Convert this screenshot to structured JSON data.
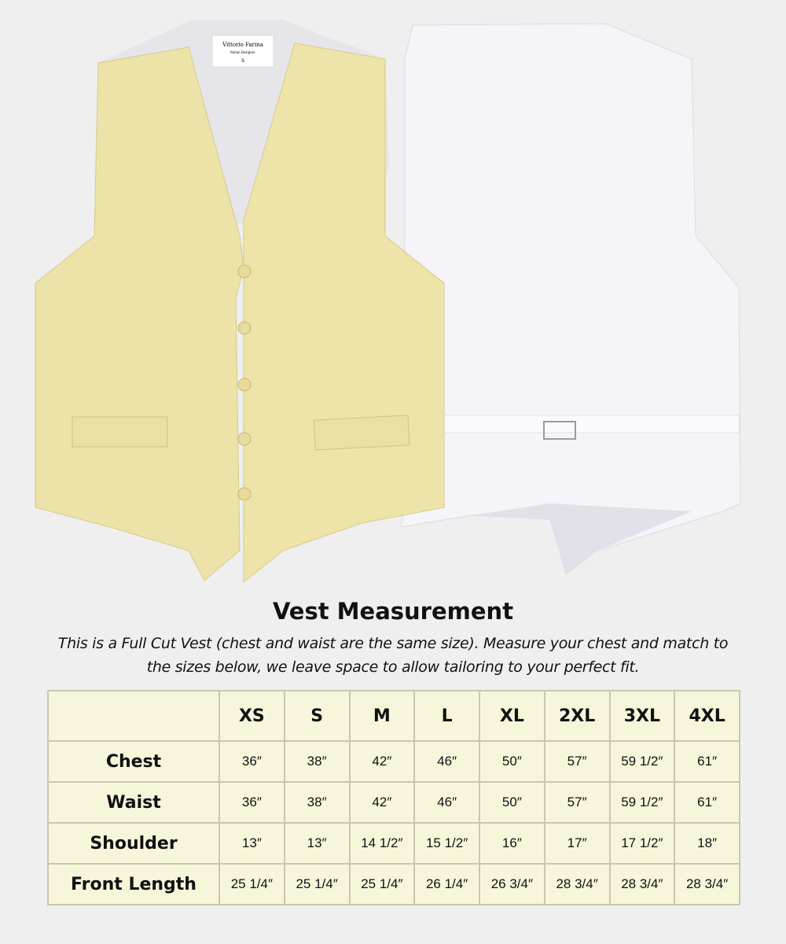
{
  "product_images": {
    "front_vest": {
      "color": "#ede3a8",
      "label_brand": "Vittorio Farina",
      "label_sub": "Italian Designer",
      "label_size": "S"
    },
    "back_vest": {
      "color": "#f4f3f8"
    }
  },
  "heading": "Vest Measurement",
  "description": "This is a Full Cut Vest (chest and waist are the same size). Measure your chest and match to the sizes below, we leave space to allow tailoring to your perfect fit.",
  "size_table": {
    "columns": [
      "",
      "XS",
      "S",
      "M",
      "L",
      "XL",
      "2XL",
      "3XL",
      "4XL"
    ],
    "rows": [
      {
        "label": "Chest",
        "values": [
          "36″",
          "38″",
          "42″",
          "46″",
          "50″",
          "57″",
          "59 1/2″",
          "61″"
        ]
      },
      {
        "label": "Waist",
        "values": [
          "36″",
          "38″",
          "42″",
          "46″",
          "50″",
          "57″",
          "59 1/2″",
          "61″"
        ]
      },
      {
        "label": "Shoulder",
        "values": [
          "13″",
          "13″",
          "14 1/2″",
          "15 1/2″",
          "16″",
          "17″",
          "17 1/2″",
          "18″"
        ]
      },
      {
        "label": "Front Length",
        "values": [
          "25 1/4″",
          "25 1/4″",
          "25 1/4″",
          "26 1/4″",
          "26 3/4″",
          "28 3/4″",
          "28 3/4″",
          "28 3/4″"
        ]
      }
    ],
    "background": "#f7f6da",
    "border": "#c9c7ad"
  }
}
